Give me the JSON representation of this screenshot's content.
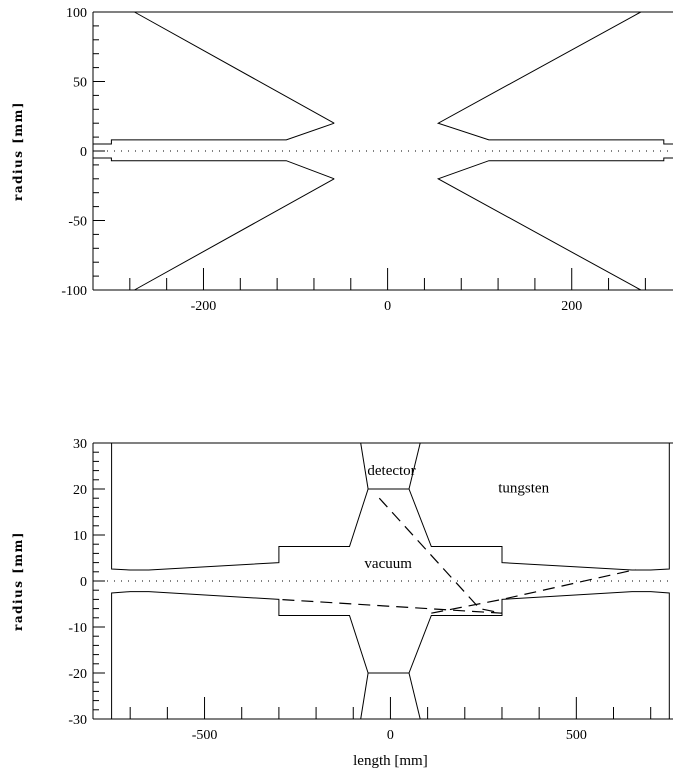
{
  "chart_data": [
    {
      "type": "line",
      "title": "",
      "xlabel": "",
      "ylabel": "radius [mm]",
      "xlim": [
        -320,
        310
      ],
      "ylim": [
        -100,
        100
      ],
      "xticks": [
        -200,
        0,
        200
      ],
      "yticks": [
        -100,
        -50,
        0,
        50,
        100
      ],
      "grid": false,
      "series": [
        {
          "style": "solid",
          "points": [
            [
              -275,
              100
            ],
            [
              -58,
              20
            ],
            [
              -275,
              100
            ]
          ]
        },
        {
          "style": "solid",
          "points": [
            [
              -275,
              -100
            ],
            [
              -58,
              -20
            ]
          ]
        },
        {
          "style": "solid",
          "points": [
            [
              275,
              100
            ],
            [
              55,
              20
            ],
            [
              110,
              8
            ],
            [
              300,
              8
            ],
            [
              300,
              5
            ],
            [
              310,
              5
            ]
          ]
        },
        {
          "style": "solid",
          "points": [
            [
              275,
              -100
            ],
            [
              55,
              -20
            ],
            [
              110,
              -7
            ],
            [
              300,
              -7
            ],
            [
              300,
              -5
            ],
            [
              310,
              -5
            ]
          ]
        },
        {
          "style": "solid",
          "points": [
            [
              -58,
              20
            ],
            [
              -110,
              8
            ],
            [
              -300,
              8
            ],
            [
              -300,
              5
            ],
            [
              -320,
              5
            ]
          ]
        },
        {
          "style": "solid",
          "points": [
            [
              -58,
              -20
            ],
            [
              -110,
              -7
            ],
            [
              -300,
              -7
            ],
            [
              -300,
              -5
            ],
            [
              -320,
              -5
            ]
          ]
        },
        {
          "style": "solid",
          "points": [
            [
              -320,
              100
            ],
            [
              310,
              100
            ]
          ]
        },
        {
          "style": "dotted",
          "points": [
            [
              -320,
              0
            ],
            [
              310,
              0
            ]
          ]
        }
      ]
    },
    {
      "type": "line",
      "title": "",
      "xlabel": "length [mm]",
      "ylabel": "radius [mm]",
      "xlim": [
        -800,
        760
      ],
      "ylim": [
        -30,
        30
      ],
      "xticks": [
        -500,
        0,
        500
      ],
      "yticks": [
        -30,
        -20,
        -10,
        0,
        10,
        20,
        30
      ],
      "grid": false,
      "annotations": [
        {
          "text": "detector",
          "x": -62,
          "y": 23
        },
        {
          "text": "tungsten",
          "x": 290,
          "y": 19.2
        },
        {
          "text": "vacuum",
          "x": -70,
          "y": 2.8
        }
      ],
      "series": [
        {
          "style": "solid",
          "points": [
            [
              -750,
              30
            ],
            [
              -750,
              2.6
            ],
            [
              -700,
              2.4
            ],
            [
              -650,
              2.4
            ],
            [
              -300,
              4
            ],
            [
              -300,
              7.5
            ],
            [
              -110,
              7.5
            ],
            [
              -60,
              20
            ],
            [
              50,
              20
            ],
            [
              110,
              7.5
            ],
            [
              300,
              7.5
            ],
            [
              300,
              4
            ],
            [
              650,
              2.4
            ],
            [
              700,
              2.4
            ],
            [
              750,
              2.6
            ],
            [
              750,
              30
            ]
          ]
        },
        {
          "style": "solid",
          "points": [
            [
              -750,
              -30
            ],
            [
              -750,
              -2.6
            ],
            [
              -700,
              -2.3
            ],
            [
              -650,
              -2.3
            ],
            [
              -300,
              -4
            ],
            [
              -300,
              -7.5
            ],
            [
              -110,
              -7.5
            ],
            [
              -60,
              -20
            ],
            [
              50,
              -20
            ],
            [
              110,
              -7.5
            ],
            [
              300,
              -7.5
            ],
            [
              300,
              -4
            ],
            [
              650,
              -2.3
            ],
            [
              700,
              -2.3
            ],
            [
              750,
              -2.6
            ],
            [
              750,
              -30
            ]
          ]
        },
        {
          "style": "solid",
          "points": [
            [
              -80,
              30
            ],
            [
              -60,
              20
            ]
          ]
        },
        {
          "style": "solid",
          "points": [
            [
              80,
              30
            ],
            [
              50,
              20
            ]
          ]
        },
        {
          "style": "solid",
          "points": [
            [
              -60,
              -20
            ],
            [
              -80,
              -30
            ]
          ]
        },
        {
          "style": "solid",
          "points": [
            [
              50,
              -20
            ],
            [
              80,
              -30
            ]
          ]
        },
        {
          "style": "solid",
          "points": [
            [
              -800,
              30
            ],
            [
              760,
              30
            ]
          ]
        },
        {
          "style": "dotted",
          "points": [
            [
              -800,
              0
            ],
            [
              760,
              0
            ]
          ]
        },
        {
          "style": "dashed",
          "points": [
            [
              -30,
              18
            ],
            [
              240,
              -6
            ],
            [
              300,
              -7
            ],
            [
              -300,
              -4
            ]
          ]
        },
        {
          "style": "dashed",
          "points": [
            [
              110,
              -7
            ],
            [
              300,
              -4
            ],
            [
              660,
              2.5
            ]
          ]
        }
      ]
    }
  ]
}
